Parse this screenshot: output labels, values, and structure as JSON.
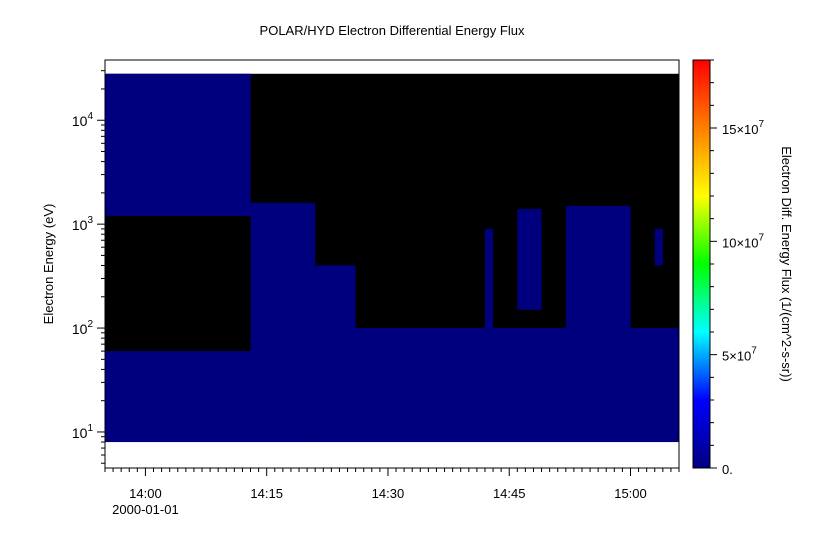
{
  "chart_data": {
    "type": "heatmap",
    "title": "POLAR/HYD  Electron Differential Energy Flux",
    "ylabel": "Electron Energy (eV)",
    "colorbar_label": "Electron Diff. Energy Flux (1/(cm^2-s-sr))",
    "x_range_minutes": [
      "13:55",
      "15:06"
    ],
    "x_ticks": [
      {
        "value": "14:00",
        "label": "14:00"
      },
      {
        "value": "14:15",
        "label": "14:15"
      },
      {
        "value": "14:30",
        "label": "14:30"
      },
      {
        "value": "14:45",
        "label": "14:45"
      },
      {
        "value": "15:00",
        "label": "15:00"
      }
    ],
    "x_date_label": "2000-01-01",
    "y_scale": "log",
    "y_range": [
      4.5,
      38000
    ],
    "y_ticks": [
      {
        "value": 10,
        "base": "10",
        "exp": "1"
      },
      {
        "value": 100,
        "base": "10",
        "exp": "2"
      },
      {
        "value": 1000,
        "base": "10",
        "exp": "3"
      },
      {
        "value": 10000,
        "base": "10",
        "exp": "4"
      }
    ],
    "data_energy_range": [
      8,
      28000
    ],
    "colorbar_range": [
      0,
      180000000
    ],
    "colorbar_ticks": [
      {
        "value": 0,
        "label": "0."
      },
      {
        "value": 50000000,
        "base": "5×10",
        "exp": "7"
      },
      {
        "value": 100000000,
        "base": "10×10",
        "exp": "7"
      },
      {
        "value": 150000000,
        "base": "15×10",
        "exp": "7"
      }
    ],
    "colormap": [
      "#00007f",
      "#0000ff",
      "#00ffff",
      "#00ff00",
      "#ffff00",
      "#ff7f00",
      "#ff0000"
    ],
    "fill_color_no_data": "#000000",
    "regions": [
      {
        "t_start": "13:55",
        "t_end": "14:13",
        "e_low": 8,
        "e_high": 60,
        "flux": 9000000
      },
      {
        "t_start": "13:55",
        "t_end": "14:13",
        "e_low": 1200,
        "e_high": 28000,
        "flux": 8000000
      },
      {
        "t_start": "14:13",
        "t_end": "14:21",
        "e_low": 8,
        "e_high": 1600,
        "flux": 8000000
      },
      {
        "t_start": "14:21",
        "t_end": "14:26",
        "e_low": 8,
        "e_high": 400,
        "flux": 8000000
      },
      {
        "t_start": "14:26",
        "t_end": "15:06",
        "e_low": 8,
        "e_high": 100,
        "flux": 9000000
      },
      {
        "t_start": "14:42",
        "t_end": "14:43",
        "e_low": 100,
        "e_high": 900,
        "flux": 7000000
      },
      {
        "t_start": "14:46",
        "t_end": "14:49",
        "e_low": 150,
        "e_high": 1400,
        "flux": 7000000
      },
      {
        "t_start": "14:52",
        "t_end": "15:00",
        "e_low": 100,
        "e_high": 1500,
        "flux": 8000000
      },
      {
        "t_start": "15:03",
        "t_end": "15:04",
        "e_low": 400,
        "e_high": 900,
        "flux": 7000000
      }
    ]
  }
}
